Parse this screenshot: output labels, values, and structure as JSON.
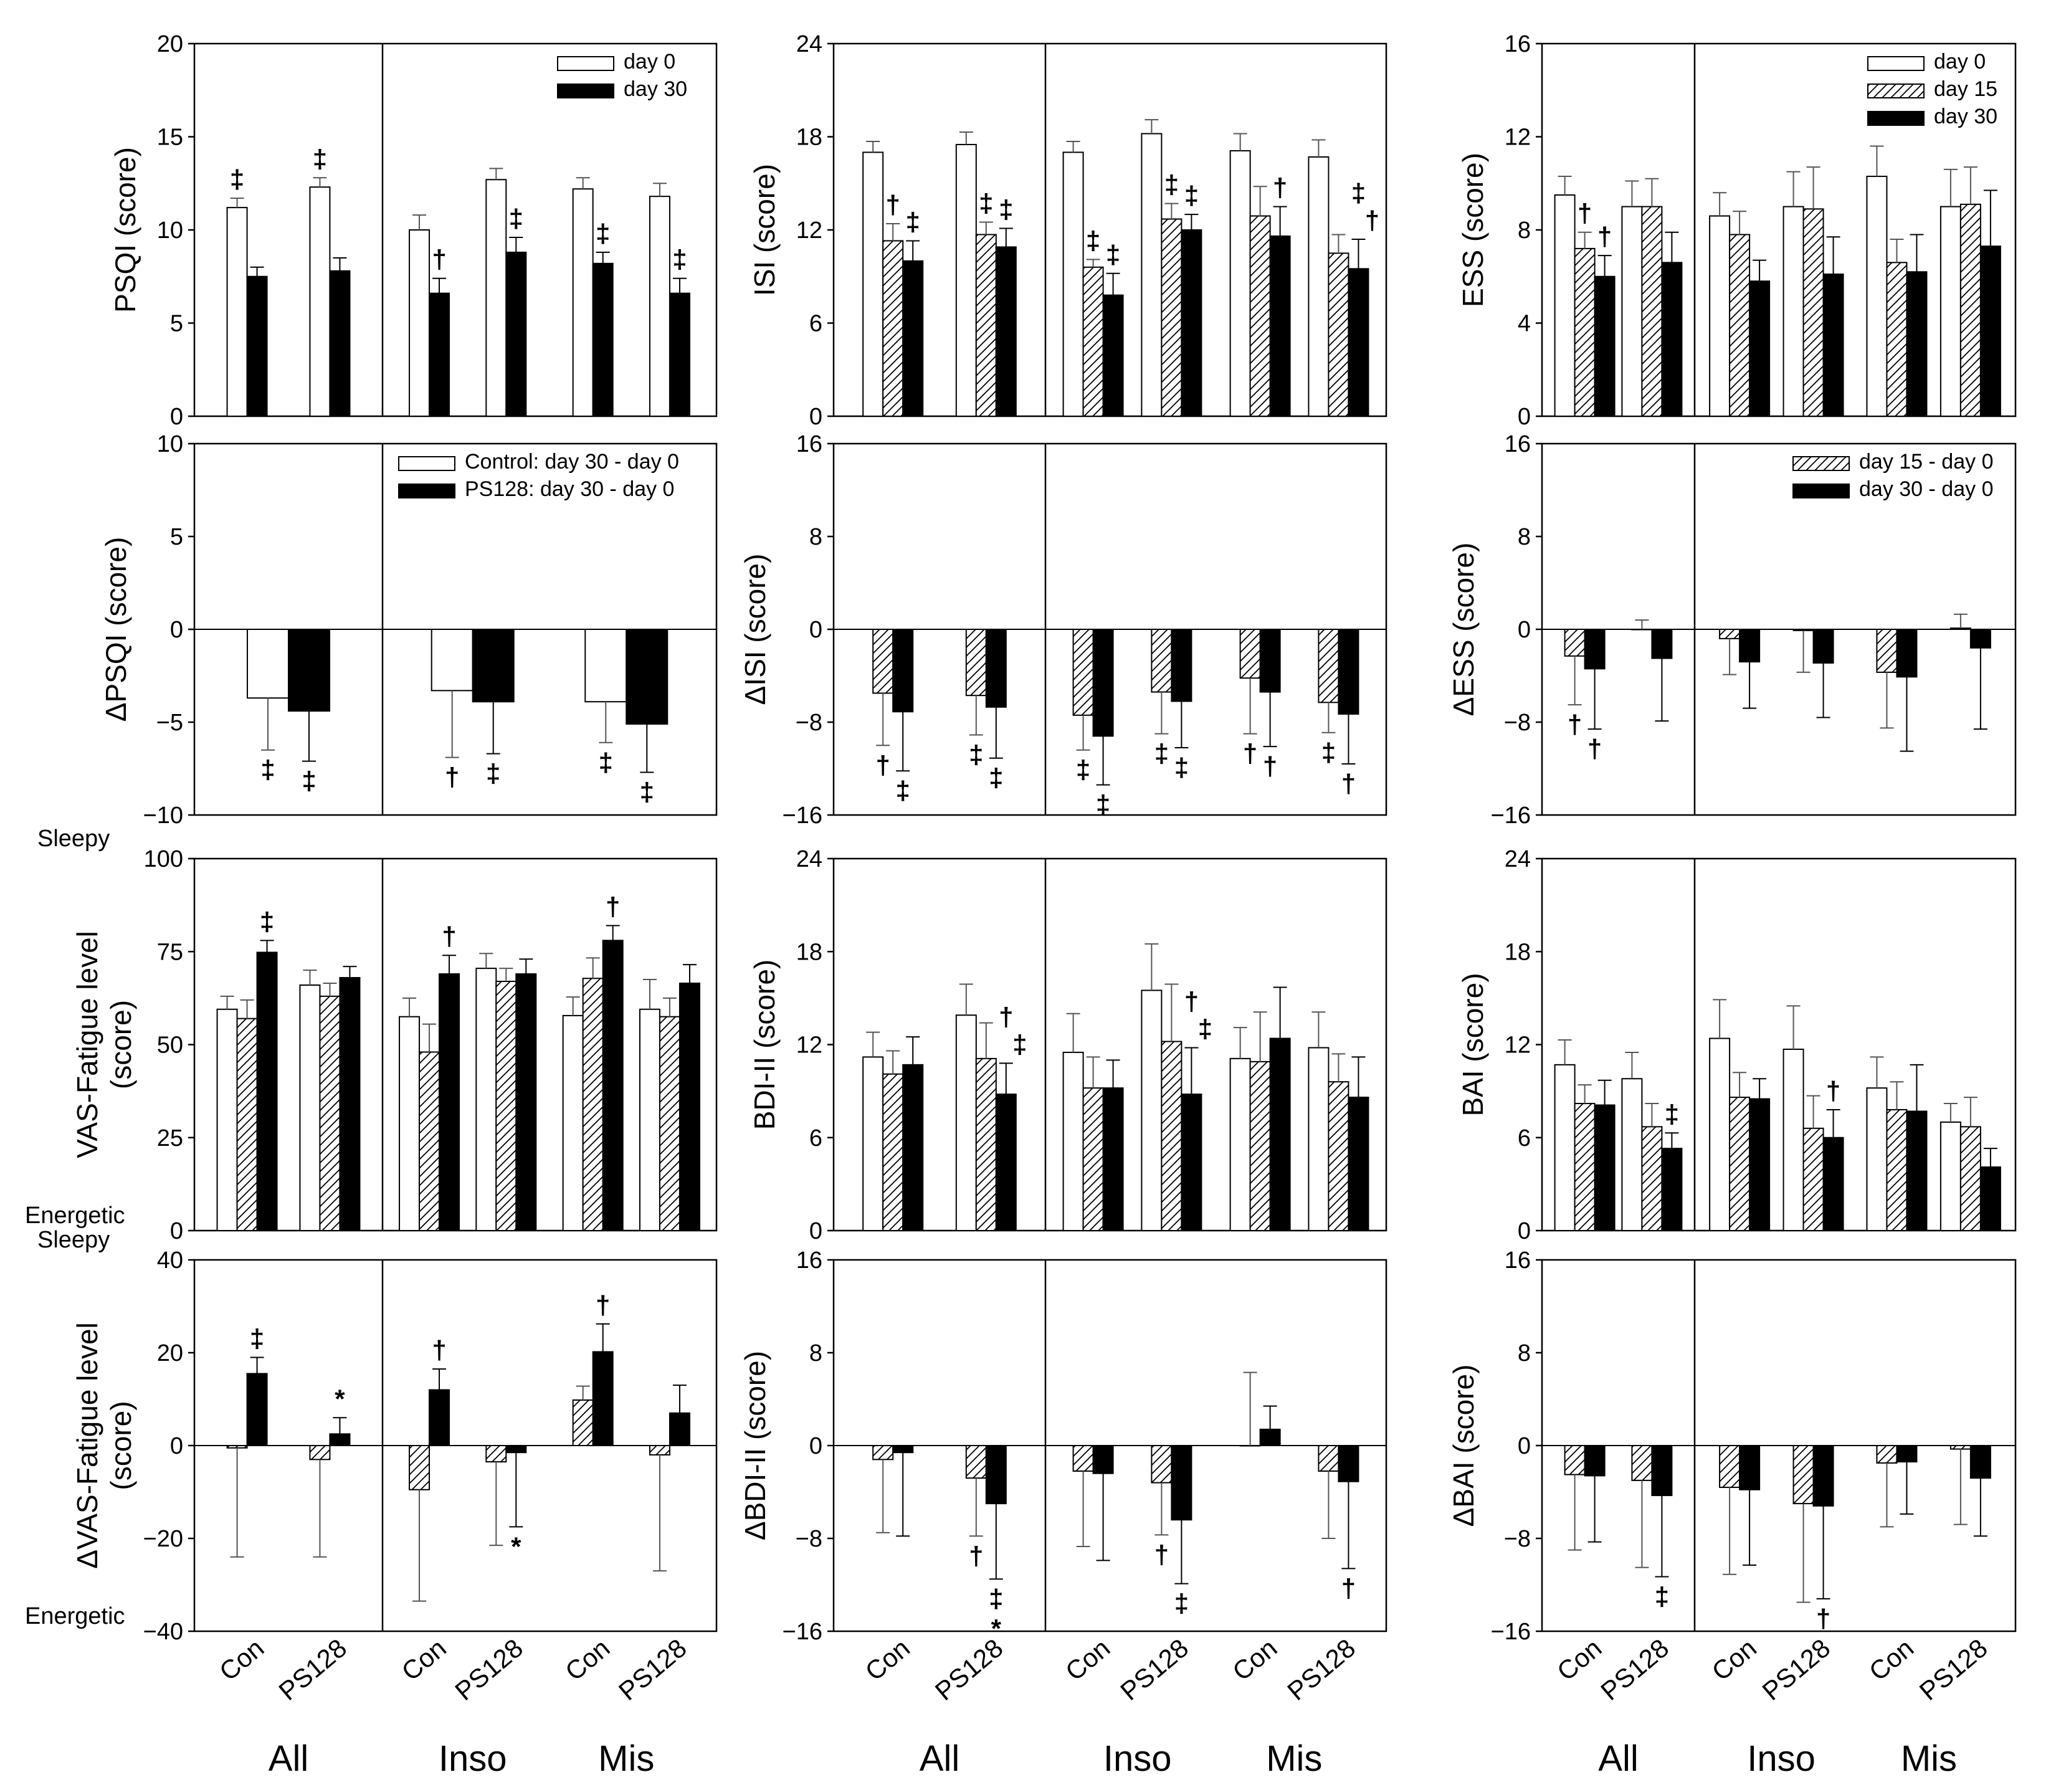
{
  "styles": {
    "open": "#ffffff",
    "hatch": "hatch",
    "solid": "#000000",
    "stroke": "#000000",
    "background": "#ffffff"
  },
  "x_axis": {
    "category_labels": [
      "Con",
      "PS128",
      "Con",
      "PS128",
      "Con",
      "PS128"
    ],
    "group_labels": [
      "All",
      "Inso",
      "Mis"
    ]
  },
  "chart_data": [
    {
      "id": "psqi",
      "type": "bar",
      "ylabel": "PSQI (score)",
      "ylim": [
        0,
        20
      ],
      "yticks": [
        0,
        5,
        10,
        15,
        20
      ],
      "categories": [
        "All-Con",
        "All-PS128",
        "Inso-Con",
        "Inso-PS128",
        "Mis-Con",
        "Mis-PS128"
      ],
      "legend": {
        "position": "top-right",
        "entries": [
          {
            "label": "day 0",
            "style": "open"
          },
          {
            "label": "day 30",
            "style": "solid"
          }
        ]
      },
      "series": [
        {
          "name": "day 0",
          "style": "open",
          "values": [
            11.2,
            12.3,
            10.0,
            12.7,
            12.2,
            11.8
          ],
          "errors": [
            0.5,
            0.5,
            0.8,
            0.6,
            0.6,
            0.7
          ],
          "annotations": [
            "‡",
            "‡",
            "",
            "",
            "",
            ""
          ]
        },
        {
          "name": "day 30",
          "style": "solid",
          "values": [
            7.5,
            7.8,
            6.6,
            8.8,
            8.2,
            6.6
          ],
          "errors": [
            0.5,
            0.7,
            0.8,
            0.8,
            0.6,
            0.8
          ],
          "annotations": [
            "",
            "",
            "†",
            "‡",
            "‡",
            "‡"
          ]
        }
      ]
    },
    {
      "id": "isi",
      "type": "bar",
      "ylabel": "ISI (score)",
      "ylim": [
        0,
        24
      ],
      "yticks": [
        0,
        6,
        12,
        18,
        24
      ],
      "categories": [
        "All-Con",
        "All-PS128",
        "Inso-Con",
        "Inso-PS128",
        "Mis-Con",
        "Mis-PS128"
      ],
      "series": [
        {
          "name": "day 0",
          "style": "open",
          "values": [
            17.0,
            17.5,
            17.0,
            18.2,
            17.1,
            16.7
          ],
          "errors": [
            0.7,
            0.8,
            0.7,
            0.9,
            1.1,
            1.1
          ]
        },
        {
          "name": "day 15",
          "style": "hatch",
          "values": [
            11.3,
            11.7,
            9.6,
            12.7,
            12.9,
            10.5
          ],
          "errors": [
            1.1,
            0.8,
            0.5,
            1.0,
            1.9,
            1.2
          ],
          "annotations": [
            "†",
            "‡",
            "‡",
            "‡",
            "",
            ""
          ]
        },
        {
          "name": "day 30",
          "style": "solid",
          "values": [
            10.0,
            10.9,
            7.8,
            12.0,
            11.6,
            9.5
          ],
          "errors": [
            1.3,
            1.2,
            1.4,
            1.0,
            1.9,
            1.9
          ],
          "annotations": [
            "‡",
            "‡",
            "‡",
            "‡",
            "†",
            "‡†"
          ]
        }
      ]
    },
    {
      "id": "ess",
      "type": "bar",
      "ylabel": "ESS (score)",
      "ylim": [
        0,
        16
      ],
      "yticks": [
        0,
        4,
        8,
        12,
        16
      ],
      "categories": [
        "All-Con",
        "All-PS128",
        "Inso-Con",
        "Inso-PS128",
        "Mis-Con",
        "Mis-PS128"
      ],
      "legend": {
        "position": "top-right",
        "entries": [
          {
            "label": "day 0",
            "style": "open"
          },
          {
            "label": "day 15",
            "style": "hatch"
          },
          {
            "label": "day 30",
            "style": "solid"
          }
        ]
      },
      "series": [
        {
          "name": "day 0",
          "style": "open",
          "values": [
            9.5,
            9.0,
            8.6,
            9.0,
            10.3,
            9.0
          ],
          "errors": [
            0.8,
            1.1,
            1.0,
            1.5,
            1.3,
            1.6
          ]
        },
        {
          "name": "day 15",
          "style": "hatch",
          "values": [
            7.2,
            9.0,
            7.8,
            8.9,
            6.6,
            9.1
          ],
          "errors": [
            0.7,
            1.2,
            1.0,
            1.8,
            1.0,
            1.6
          ],
          "annotations": [
            "†",
            "",
            "",
            "",
            "",
            ""
          ]
        },
        {
          "name": "day 30",
          "style": "solid",
          "values": [
            6.0,
            6.6,
            5.8,
            6.1,
            6.2,
            7.3
          ],
          "errors": [
            0.9,
            1.3,
            0.9,
            1.6,
            1.6,
            2.4
          ],
          "annotations": [
            "†",
            "",
            "",
            "",
            "",
            ""
          ]
        }
      ]
    },
    {
      "id": "dpsqi",
      "type": "bar",
      "ylabel": "ΔPSQI (score)",
      "ylim": [
        -10,
        10
      ],
      "yticks": [
        -10,
        -5,
        0,
        5,
        10
      ],
      "categories": [
        "All",
        "Inso",
        "Mis"
      ],
      "legend": {
        "position": "top-right",
        "entries": [
          {
            "label": "Control: day 30 - day 0",
            "style": "open"
          },
          {
            "label": "PS128: day 30 - day 0",
            "style": "solid"
          }
        ]
      },
      "series": [
        {
          "name": "Control: day 30 - day 0",
          "style": "open",
          "values": [
            -3.7,
            -3.3,
            -3.9
          ],
          "errors": [
            2.8,
            3.6,
            2.2
          ],
          "annotations": [
            "‡",
            "†",
            "‡"
          ]
        },
        {
          "name": "PS128: day 30 - day 0",
          "style": "solid",
          "values": [
            -4.4,
            -3.9,
            -5.1
          ],
          "errors": [
            2.7,
            2.8,
            2.6
          ],
          "annotations": [
            "‡",
            "‡",
            "‡"
          ]
        }
      ]
    },
    {
      "id": "disi",
      "type": "bar",
      "ylabel": "ΔISI (score)",
      "ylim": [
        -16,
        16
      ],
      "yticks": [
        -16,
        -8,
        0,
        8,
        16
      ],
      "categories": [
        "All-Con",
        "All-PS128",
        "Inso-Con",
        "Inso-PS128",
        "Mis-Con",
        "Mis-PS128"
      ],
      "series": [
        {
          "name": "day 15 - day 0",
          "style": "hatch",
          "values": [
            -5.5,
            -5.7,
            -7.4,
            -5.4,
            -4.2,
            -6.3
          ],
          "errors": [
            4.5,
            3.4,
            3.0,
            3.6,
            4.8,
            2.6
          ],
          "annotations": [
            "†",
            "‡",
            "‡",
            "‡",
            "†",
            "‡"
          ]
        },
        {
          "name": "day 30 - day 0",
          "style": "solid",
          "values": [
            -7.1,
            -6.7,
            -9.2,
            -6.2,
            -5.4,
            -7.3
          ],
          "errors": [
            5.1,
            4.4,
            4.2,
            4.0,
            4.7,
            4.3
          ],
          "annotations": [
            "‡",
            "‡",
            "‡",
            "‡",
            "†",
            "†"
          ]
        }
      ]
    },
    {
      "id": "dess",
      "type": "bar",
      "ylabel": "ΔESS (score)",
      "ylim": [
        -16,
        16
      ],
      "yticks": [
        -16,
        -8,
        0,
        8,
        16
      ],
      "categories": [
        "All-Con",
        "All-PS128",
        "Inso-Con",
        "Inso-PS128",
        "Mis-Con",
        "Mis-PS128"
      ],
      "legend": {
        "position": "top-right",
        "entries": [
          {
            "label": "day 15 - day 0",
            "style": "hatch"
          },
          {
            "label": "day 30 - day 0",
            "style": "solid"
          }
        ]
      },
      "series": [
        {
          "name": "day 15 - day 0",
          "style": "hatch",
          "values": [
            -2.3,
            0.0,
            -0.8,
            -0.1,
            -3.7,
            0.1
          ],
          "errors": [
            4.2,
            0.8,
            3.1,
            3.6,
            4.8,
            1.2
          ],
          "annotations": [
            "†",
            "",
            "",
            "",
            "",
            ""
          ]
        },
        {
          "name": "day 30 - day 0",
          "style": "solid",
          "values": [
            -3.4,
            -2.5,
            -2.8,
            -2.9,
            -4.1,
            -1.6
          ],
          "errors": [
            5.2,
            5.4,
            4.0,
            4.7,
            6.4,
            7.0
          ],
          "annotations": [
            "†",
            "",
            "",
            "",
            "",
            ""
          ]
        }
      ]
    },
    {
      "id": "vas",
      "type": "bar",
      "ylabel": "VAS-Fatigue level (score)",
      "ylim": [
        0,
        100
      ],
      "yticks": [
        0,
        25,
        50,
        75,
        100
      ],
      "end_labels": {
        "top": "Sleepy",
        "bottom": "Energetic"
      },
      "categories": [
        "All-Con",
        "All-PS128",
        "Inso-Con",
        "Inso-PS128",
        "Mis-Con",
        "Mis-PS128"
      ],
      "series": [
        {
          "name": "day 0",
          "style": "open",
          "values": [
            59.5,
            66.0,
            57.5,
            70.5,
            57.8,
            59.5
          ],
          "errors": [
            3.5,
            4.0,
            5.0,
            4.0,
            5.0,
            8.0
          ]
        },
        {
          "name": "day 15",
          "style": "hatch",
          "values": [
            57.0,
            63.0,
            48.0,
            67.0,
            67.8,
            57.5
          ],
          "errors": [
            5.0,
            3.5,
            7.5,
            3.5,
            5.5,
            5.0
          ]
        },
        {
          "name": "day 30",
          "style": "solid",
          "values": [
            74.8,
            68.0,
            69.0,
            69.0,
            78.0,
            66.5
          ],
          "errors": [
            3.2,
            3.0,
            5.0,
            4.0,
            4.0,
            5.0
          ],
          "annotations": [
            "‡",
            "",
            "†",
            "",
            "†",
            ""
          ]
        }
      ]
    },
    {
      "id": "bdi",
      "type": "bar",
      "ylabel": "BDI-II (score)",
      "ylim": [
        0,
        24
      ],
      "yticks": [
        0,
        6,
        12,
        18,
        24
      ],
      "categories": [
        "All-Con",
        "All-PS128",
        "Inso-Con",
        "Inso-PS128",
        "Mis-Con",
        "Mis-PS128"
      ],
      "series": [
        {
          "name": "day 0",
          "style": "open",
          "values": [
            11.2,
            13.9,
            11.5,
            15.5,
            11.1,
            11.8
          ],
          "errors": [
            1.6,
            2.0,
            2.5,
            3.0,
            2.0,
            2.3
          ]
        },
        {
          "name": "day 15",
          "style": "hatch",
          "values": [
            10.1,
            11.1,
            9.2,
            12.2,
            10.9,
            9.6
          ],
          "errors": [
            1.5,
            2.3,
            2.0,
            3.7,
            3.2,
            1.8
          ]
        },
        {
          "name": "day 30",
          "style": "solid",
          "values": [
            10.7,
            8.8,
            9.2,
            8.8,
            12.4,
            8.6
          ],
          "errors": [
            1.8,
            2.0,
            1.8,
            3.0,
            3.3,
            2.6
          ],
          "annotations": [
            "",
            "†‡",
            "",
            "†‡",
            "",
            ""
          ]
        }
      ]
    },
    {
      "id": "bai",
      "type": "bar",
      "ylabel": "BAI (score)",
      "ylim": [
        0,
        24
      ],
      "yticks": [
        0,
        6,
        12,
        18,
        24
      ],
      "categories": [
        "All-Con",
        "All-PS128",
        "Inso-Con",
        "Inso-PS128",
        "Mis-Con",
        "Mis-PS128"
      ],
      "series": [
        {
          "name": "day 0",
          "style": "open",
          "values": [
            10.7,
            9.8,
            12.4,
            11.7,
            9.2,
            7.0
          ],
          "errors": [
            1.6,
            1.7,
            2.5,
            2.8,
            2.0,
            1.2
          ]
        },
        {
          "name": "day 15",
          "style": "hatch",
          "values": [
            8.2,
            6.7,
            8.6,
            6.6,
            7.8,
            6.7
          ],
          "errors": [
            1.2,
            1.5,
            1.6,
            2.1,
            1.8,
            1.9
          ]
        },
        {
          "name": "day 30",
          "style": "solid",
          "values": [
            8.1,
            5.3,
            8.5,
            6.0,
            7.7,
            4.1
          ],
          "errors": [
            1.6,
            1.0,
            1.3,
            1.8,
            3.0,
            1.2
          ],
          "annotations": [
            "",
            "‡",
            "",
            "†",
            "",
            ""
          ]
        }
      ]
    },
    {
      "id": "dvas",
      "type": "bar",
      "ylabel": "ΔVAS-Fatigue level (score)",
      "ylim": [
        -40,
        40
      ],
      "yticks": [
        -40,
        -20,
        0,
        20,
        40
      ],
      "end_labels": {
        "top": "Sleepy",
        "bottom": "Energetic"
      },
      "categories": [
        "All-Con",
        "All-PS128",
        "Inso-Con",
        "Inso-PS128",
        "Mis-Con",
        "Mis-PS128"
      ],
      "series": [
        {
          "name": "day 15 - day 0",
          "style": "hatch",
          "values": [
            -0.5,
            -3.0,
            -9.5,
            -3.5,
            9.8,
            -2.0
          ],
          "errors": [
            23.5,
            21.0,
            24.0,
            18.0,
            3.0,
            25.0
          ]
        },
        {
          "name": "day 30 - day 0",
          "style": "solid",
          "values": [
            15.5,
            2.5,
            12.0,
            -1.5,
            20.2,
            7.0
          ],
          "errors": [
            3.5,
            3.5,
            4.5,
            16.0,
            6.0,
            6.0
          ],
          "annotations": [
            "‡",
            "*",
            "†",
            "*",
            "†",
            ""
          ]
        }
      ]
    },
    {
      "id": "dbdi",
      "type": "bar",
      "ylabel": "ΔBDI-II (score)",
      "ylim": [
        -16,
        16
      ],
      "yticks": [
        -16,
        -8,
        0,
        8,
        16
      ],
      "categories": [
        "All-Con",
        "All-PS128",
        "Inso-Con",
        "Inso-PS128",
        "Mis-Con",
        "Mis-PS128"
      ],
      "series": [
        {
          "name": "day 15 - day 0",
          "style": "hatch",
          "values": [
            -1.2,
            -2.8,
            -2.2,
            -3.2,
            0.0,
            -2.2
          ],
          "errors": [
            6.3,
            5.0,
            6.5,
            4.5,
            6.3,
            5.8
          ],
          "annotations": [
            "",
            "†",
            "",
            "†",
            "",
            ""
          ]
        },
        {
          "name": "day 30 - day 0",
          "style": "solid",
          "values": [
            -0.6,
            -5.0,
            -2.4,
            -6.4,
            1.4,
            -3.1
          ],
          "errors": [
            7.2,
            6.5,
            7.5,
            5.5,
            2.0,
            7.5
          ],
          "annotations": [
            "",
            "‡*",
            "",
            "‡",
            "",
            "†"
          ]
        }
      ]
    },
    {
      "id": "dbai",
      "type": "bar",
      "ylabel": "ΔBAI (score)",
      "ylim": [
        -16,
        16
      ],
      "yticks": [
        -16,
        -8,
        0,
        8,
        16
      ],
      "categories": [
        "All-Con",
        "All-PS128",
        "Inso-Con",
        "Inso-PS128",
        "Mis-Con",
        "Mis-PS128"
      ],
      "series": [
        {
          "name": "day 15 - day 0",
          "style": "hatch",
          "values": [
            -2.5,
            -3.0,
            -3.6,
            -5.0,
            -1.5,
            -0.3
          ],
          "errors": [
            6.5,
            7.5,
            7.5,
            8.5,
            5.5,
            6.5
          ]
        },
        {
          "name": "day 30 - day 0",
          "style": "solid",
          "values": [
            -2.6,
            -4.3,
            -3.8,
            -5.2,
            -1.4,
            -2.8
          ],
          "errors": [
            5.7,
            7.0,
            6.5,
            8.0,
            4.5,
            5.0
          ],
          "annotations": [
            "",
            "‡",
            "",
            "†",
            "",
            ""
          ]
        }
      ]
    }
  ]
}
